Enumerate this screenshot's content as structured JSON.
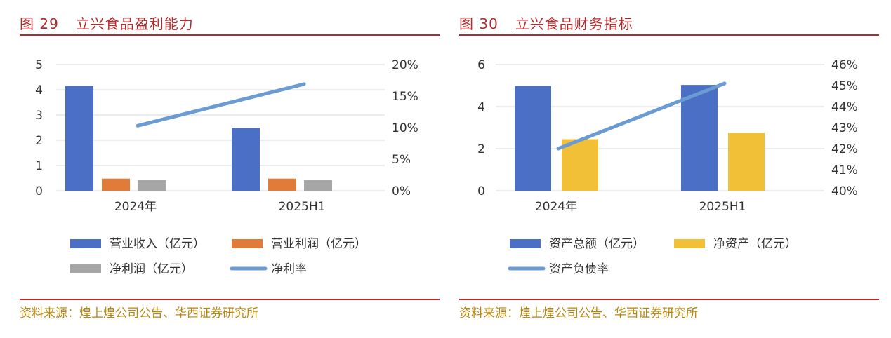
{
  "panels": [
    {
      "figure_no": "图 29",
      "title": "立兴食品盈利能力",
      "source": "资料来源：煌上煌公司公告、华西证券研究所"
    },
    {
      "figure_no": "图 30",
      "title": "立兴食品财务指标",
      "source": "资料来源：煌上煌公司公告、华西证券研究所"
    }
  ],
  "chart_data": [
    {
      "type": "bar",
      "categories": [
        "2024年",
        "2025H1"
      ],
      "series": [
        {
          "name": "营业收入（亿元）",
          "type": "bar",
          "axis": "left",
          "color": "#4a6fc4",
          "values": [
            4.15,
            2.48
          ]
        },
        {
          "name": "营业利润（亿元）",
          "type": "bar",
          "axis": "left",
          "color": "#e07b3a",
          "values": [
            0.48,
            0.48
          ]
        },
        {
          "name": "净利润（亿元）",
          "type": "bar",
          "axis": "left",
          "color": "#a6a6a6",
          "values": [
            0.43,
            0.43
          ]
        },
        {
          "name": "净利率",
          "type": "line",
          "axis": "right",
          "color": "#6a9bd3",
          "values": [
            10.3,
            16.9
          ]
        }
      ],
      "y_left": {
        "min": 0,
        "max": 5,
        "ticks": [
          "0",
          "1",
          "2",
          "3",
          "4",
          "5"
        ]
      },
      "y_right": {
        "min": 0,
        "max": 20,
        "ticks": [
          "0%",
          "5%",
          "10%",
          "15%",
          "20%"
        ]
      },
      "grid": true,
      "legend_position": "bottom"
    },
    {
      "type": "bar",
      "categories": [
        "2024年",
        "2025H1"
      ],
      "series": [
        {
          "name": "资产总额（亿元）",
          "type": "bar",
          "axis": "left",
          "color": "#4a6fc4",
          "values": [
            4.98,
            5.03
          ]
        },
        {
          "name": "净资产（亿元）",
          "type": "bar",
          "axis": "left",
          "color": "#f2c037",
          "values": [
            2.45,
            2.75
          ]
        },
        {
          "name": "资产负债率",
          "type": "line",
          "axis": "right",
          "color": "#6a9bd3",
          "values": [
            42.0,
            45.1
          ]
        }
      ],
      "y_left": {
        "min": 0,
        "max": 6,
        "ticks": [
          "0",
          "2",
          "4",
          "6"
        ]
      },
      "y_right": {
        "min": 40,
        "max": 46,
        "ticks": [
          "40%",
          "41%",
          "42%",
          "43%",
          "44%",
          "45%",
          "46%"
        ]
      },
      "grid": true,
      "legend_position": "bottom"
    }
  ]
}
